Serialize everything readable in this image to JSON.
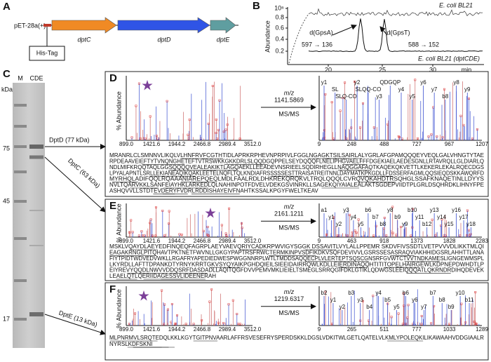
{
  "panel_a": {
    "label": "A",
    "vector": "pET-28a(+)",
    "genes": [
      "dptC",
      "dptD",
      "dptE"
    ],
    "tag": "His-Tag"
  },
  "panel_b": {
    "label": "B",
    "y_axis_label": "Abundance",
    "y_ticks": [
      "10⁶",
      "0.8",
      "0.6",
      "0.4",
      "0.2"
    ],
    "x_ticks": [
      "20",
      "25",
      "30"
    ],
    "x_unit": "min",
    "traces": [
      "E. coli BL21",
      "E. coli BL21 (dptCDE)"
    ],
    "peaks": [
      {
        "name": "d(GpsA)",
        "transition": "597 → 136"
      },
      {
        "name": "d(GpsT)",
        "transition": "588 → 152"
      }
    ]
  },
  "panel_c": {
    "label": "C",
    "lanes": [
      "M",
      "CDE"
    ],
    "unit": "kDa",
    "markers": [
      "75",
      "45",
      "17"
    ],
    "bands": [
      "DptD (77 kDa)",
      "DptC (63 kDa)",
      "DptE (13 kDa)"
    ]
  },
  "panels": [
    {
      "label": "D",
      "y_axis_label": "% Abundance",
      "ms1_ticks": [
        "899.0",
        "1421.6",
        "1944.2",
        "2466.8",
        "2989.4",
        "3512.0"
      ],
      "mz_label": "m/z",
      "precursor": "1141.5869",
      "msms": "MS/MS",
      "ms2_ticks": [
        "9",
        "248",
        "488",
        "727",
        "967",
        "1207"
      ],
      "ions": [
        "y1",
        "SL",
        "SLQ-CO",
        "y2",
        "SLQQ-CO",
        "y3",
        "QDGQP",
        "y4",
        "y5",
        "y6",
        "y7",
        "b8",
        "y8",
        "y9"
      ],
      "sequence": [
        "MRANRLCLSMNNVLIKQLVLHNFRVFCGTHTIDLAPRKRPHEVNPRPIVLFGGLNGAGKTSILSAIRLALYGRLAFGPAMQQQEYVEQLGALVHNGTYTAE",
        "RPDEAAVEIEFTYTVNQNGHETEFTVTRSWKKGKKDRLSLQQDGQPPELSEYDQQQFLNELIPHGVAELFFFDGEKIAELAEDESGNLLRTAVRQLLGLDIARLQ",
        "NDLMIFKRQQTAQLGGSQQQQVEALEAKIKTLAGQAEKLLEEADEVNSRIEELSQDIRHEGLLNAQGGAFAQTKAQEKQKVETTLKEKERLEKALRQECDGS",
        "LPYALAPNTLSRLLEKIANEAQIKQAKLEETELNQFLTQLKNDIAFRSSSSSESTTRAISATREITNNLDAYMATKPKGDLLFDSSERFAGMLQQSIEQDSKKAWQRFD",
        "MYRHQLADIFQQLRQAAANIAREPQEQLMDLFAALRDLDHKREKQRQKVLTRQLQQQLCVRQVQKAHDTRSQHGLSSAFKNAQETINLLDYYS",
        "NVLTQARVKKLSANFEIAYHKLARKEDLQLNAHINPOTFDVELVDEKGSVINRKLLSAGEKQIYAIALEALAKTSGDEPVIIDTPLGRLDSQHRDKLIHNYFPE",
        "ASHQVVLLSTDTEVDERYFVDRLRDDISHAYEIVFNAHTKSSALKPGYFWELTKEAV"
      ]
    },
    {
      "label": "E",
      "y_axis_label": "% Abundance",
      "ms1_ticks": [
        "899.0",
        "1421.6",
        "1944.2",
        "2466.8",
        "2989.4",
        "3512.0"
      ],
      "mz_label": "m/z",
      "precursor": "2161.1211",
      "msms": "MS/MS",
      "ms2_ticks": [
        "9",
        "463",
        "918",
        "1373",
        "1828",
        "2283"
      ],
      "ions": [
        "a1",
        "y1",
        "y2",
        "y3",
        "y4",
        "y5",
        "b6",
        "b7",
        "b8",
        "y8",
        "b9",
        "y9",
        "b10",
        "y11",
        "b12",
        "y13",
        "y14",
        "y15",
        "y16",
        "y17",
        "y18"
      ],
      "sequence": [
        "MSKLVQAYDLAEYEDFINQEQFAGRPLAEYVAEVQRIYCADKRPWVIGYSGGK DSSAVITLVYLALLPPEMR SKDVFIVSSDTLVETPVVVDLIKKTMLQI",
        "EAGAKRNGLPITQHAVTPKTNETFWVNLLGKGYPAPTRSFRWCTERMKINPVSDFIKDKVSQFDEVIVVLGSRSSESASRAQVIAKHHIDGSRLAHHTTLANA",
        "FIYTPIDTWDVEDVWKLLRGAFRYAPEDIEDWESPWGGNNRPLWTLTMDDSAQQECPLVLERTEPTSQSCGNSRFGVWTCTVVTNDKAMESLIGNGEWMSPL",
        "LKYRDLLAFTTDPANKDTYRNYKRRTGKVSYQYAIKPGHDQIEILSIEEIDAIRRQWLKDLLEIERDINAQQHTITITOPELHAIRGEWLKDPNEPDWHDTLP",
        "EIYREVYQQDLNWVVDDQSRFDASDADLLAQITQGFDVVPEMVMKLIEIELTSMEGLSRRQGIFDKLGTIKLQDWGSLEEIQQQATLQKRNDRDIHQDEVEK",
        "LEAELQTLQERIIDAGESSVLIDEENERAH"
      ]
    },
    {
      "label": "F",
      "y_axis_label": "% Abundance",
      "ms1_ticks": [
        "899.0",
        "1421.6",
        "1944.2",
        "2466.8",
        "2989.4",
        "3512.0"
      ],
      "mz_label": "m/z",
      "precursor": "1219.6317",
      "msms": "MS/MS",
      "ms2_ticks": [
        "9",
        "265",
        "511",
        "777",
        "1033",
        "1289"
      ],
      "ions": [
        "b2",
        "y1",
        "y2",
        "b3",
        "y3",
        "b4",
        "y4",
        "b5",
        "y5",
        "b6",
        "y6",
        "y7",
        "b7",
        "b8",
        "b9",
        "y10",
        "b11"
      ],
      "sequence": [
        "MLPNRMVLSRQTEDQLKKLKGYTGITPNVAARLAFFRSVESEFRYSPERDSKKLDGSLVDKITWLGETLQATELVLKMLYPOLEQKILIKAWAAHVDDGIAALR",
        "NYRSLKDFSKNI"
      ]
    }
  ]
}
